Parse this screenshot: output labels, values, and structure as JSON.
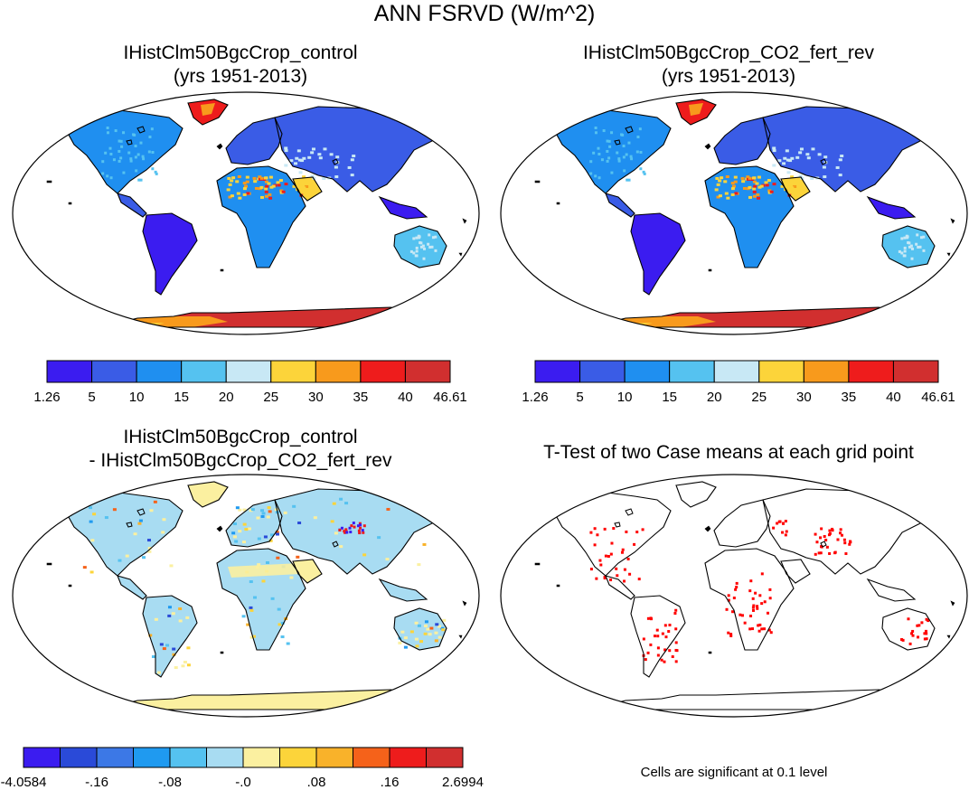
{
  "main_title": "ANN FSRVD (W/m^2)",
  "panels": [
    {
      "title_line1": "IHistClm50BgcCrop_control",
      "title_line2": "(yrs 1951-2013)"
    },
    {
      "title_line1": "IHistClm50BgcCrop_CO2_fert_rev",
      "title_line2": "(yrs 1951-2013)"
    },
    {
      "title_line1": "IHistClm50BgcCrop_control",
      "title_line2": "- IHistClm50BgcCrop_CO2_fert_rev"
    },
    {
      "title_line1": "T-Test of two Case means at each grid point",
      "title_line2": ""
    }
  ],
  "colorbar_abs": {
    "colors": [
      "#3b1cf0",
      "#3a5ce6",
      "#1f8ff0",
      "#55c2f0",
      "#c8e8f5",
      "#fcd43a",
      "#f89a1c",
      "#ee1c1c",
      "#d12f2f"
    ],
    "labels": [
      "1.26",
      "5",
      "10",
      "15",
      "20",
      "25",
      "30",
      "35",
      "40",
      "46.61"
    ]
  },
  "colorbar_diff": {
    "colors": [
      "#3b1cf0",
      "#2a4ad8",
      "#3c78e6",
      "#1f9af0",
      "#55c2f0",
      "#a8dcf2",
      "#fbf0a0",
      "#fcd43a",
      "#f9b22a",
      "#f5621a",
      "#ee1c1c",
      "#d12f2f"
    ],
    "labels": [
      "-4.0584",
      "-.16",
      "-.08",
      "-.0",
      ".08",
      ".16",
      "2.6994"
    ]
  },
  "significance_note": "Cells are significant at 0.1 level",
  "significance_color": "#ff0000"
}
